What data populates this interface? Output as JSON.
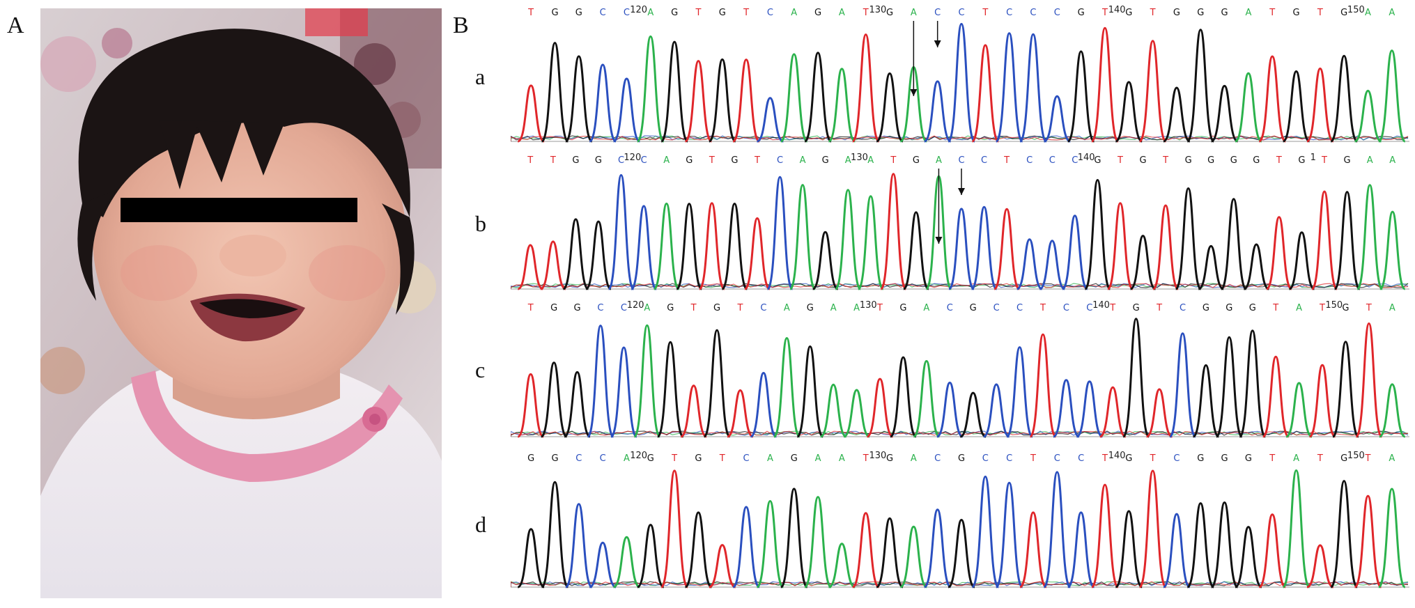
{
  "panels": {
    "A": {
      "label": "A",
      "photo_description_icon": "child-photo-eyes-covered"
    },
    "B": {
      "label": "B",
      "rows": [
        {
          "label": "a",
          "sequence": "TGGCCAGTGTCAGATGACCTCCCGTGTGGGATGTGAA",
          "position_markers": [
            "120",
            "130",
            "140",
            "150"
          ],
          "arrows_at_index": [
            16,
            17
          ]
        },
        {
          "label": "b",
          "sequence": "TTGGCCAGTGTCAGAATGACCTCCCGTGTGGGGTGTGAA",
          "position_markers": [
            "120",
            "130",
            "140",
            "1"
          ],
          "arrows_at_index": [
            18,
            19
          ]
        },
        {
          "label": "c",
          "sequence": "TGGCCAGTGTCAGAATGACGCCTCCTGTCGGGTATGTA",
          "position_markers": [
            "120",
            "130",
            "140",
            "150"
          ],
          "arrows_at_index": []
        },
        {
          "label": "d",
          "sequence": "GGCCAGTGTCAGAATGACGCCTCCTGTCGGGTATGTA",
          "position_markers": [
            "120",
            "130",
            "140",
            "150"
          ],
          "arrows_at_index": []
        }
      ]
    }
  },
  "colors": {
    "A": "#2bb24c",
    "C": "#2a4fbf",
    "G": "#111111",
    "T": "#e0262a",
    "censor_bar": "#000000"
  }
}
